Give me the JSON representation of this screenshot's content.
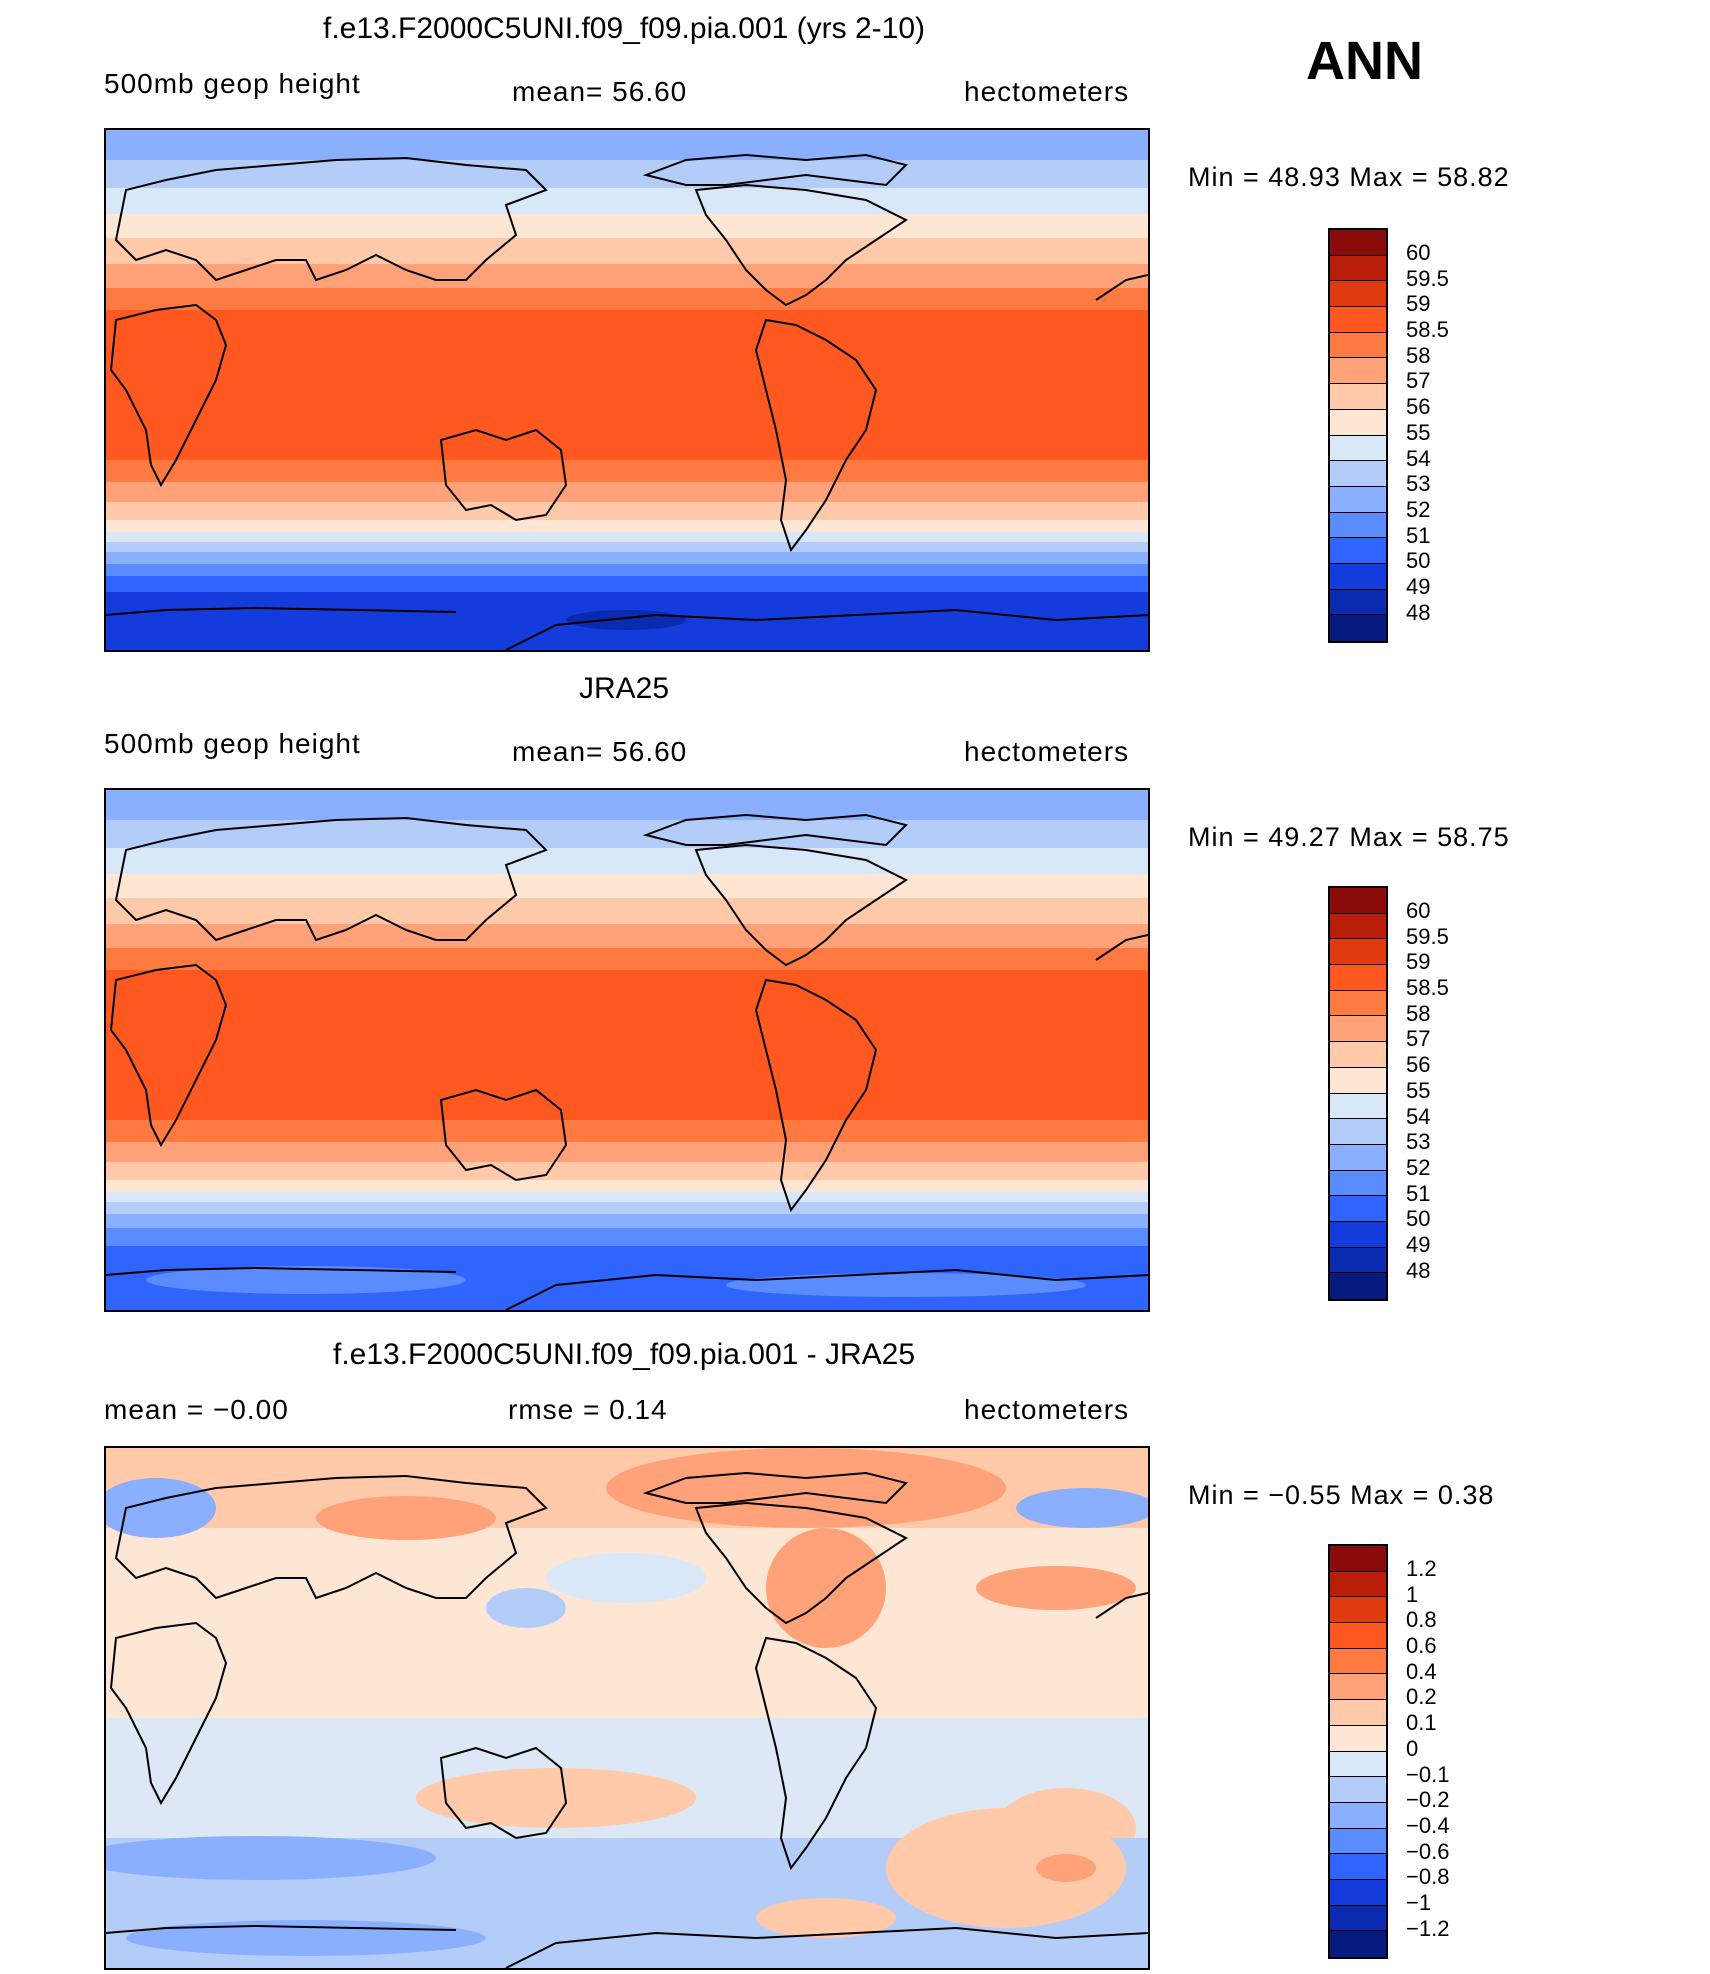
{
  "season": "ANN",
  "panels": [
    {
      "title": "f.e13.F2000C5UNI.f09_f09.pia.001 (yrs 2-10)",
      "left_text": "500mb  geop  height",
      "center_text": "mean=   56.60",
      "right_text": "hectometers",
      "minmax": "Min  =    48.93  Max  =    58.82",
      "legend_labels": [
        "60",
        "59.5",
        "59",
        "58.5",
        "58",
        "57",
        "56",
        "55",
        "54",
        "53",
        "52",
        "51",
        "50",
        "49",
        "48"
      ],
      "legend_colors": [
        "#8b0a0a",
        "#b81e0a",
        "#e03a10",
        "#ff5820",
        "#ff7a40",
        "#ffa27a",
        "#ffc9aa",
        "#fde6d4",
        "#d8e8f8",
        "#b4cdf8",
        "#8aafff",
        "#5a8cff",
        "#2f64ff",
        "#143cdc",
        "#0a2ab0",
        "#061a80"
      ]
    },
    {
      "title": "JRA25",
      "left_text": "500mb  geop  height",
      "center_text": "mean=   56.60",
      "right_text": "hectometers",
      "minmax": "Min  =    49.27  Max  =    58.75",
      "legend_labels": [
        "60",
        "59.5",
        "59",
        "58.5",
        "58",
        "57",
        "56",
        "55",
        "54",
        "53",
        "52",
        "51",
        "50",
        "49",
        "48"
      ],
      "legend_colors": [
        "#8b0a0a",
        "#b81e0a",
        "#e03a10",
        "#ff5820",
        "#ff7a40",
        "#ffa27a",
        "#ffc9aa",
        "#fde6d4",
        "#d8e8f8",
        "#b4cdf8",
        "#8aafff",
        "#5a8cff",
        "#2f64ff",
        "#143cdc",
        "#0a2ab0",
        "#061a80"
      ]
    },
    {
      "title": "f.e13.F2000C5UNI.f09_f09.pia.001 - JRA25",
      "left_text": "mean  =    −0.00",
      "center_text": "rmse  =     0.14",
      "right_text": "hectometers",
      "minmax": "Min  =    −0.55  Max  =      0.38",
      "legend_labels": [
        "1.2",
        "1",
        "0.8",
        "0.6",
        "0.4",
        "0.2",
        "0.1",
        "0",
        "−0.1",
        "−0.2",
        "−0.4",
        "−0.6",
        "−0.8",
        "−1",
        "−1.2"
      ],
      "legend_colors": [
        "#8b0a0a",
        "#b81e0a",
        "#e03a10",
        "#ff5820",
        "#ff7a40",
        "#ffa27a",
        "#ffc9aa",
        "#fde6d4",
        "#d8e8f8",
        "#b4cdf8",
        "#8aafff",
        "#5a8cff",
        "#2f64ff",
        "#143cdc",
        "#0a2ab0",
        "#061a80"
      ]
    }
  ]
}
